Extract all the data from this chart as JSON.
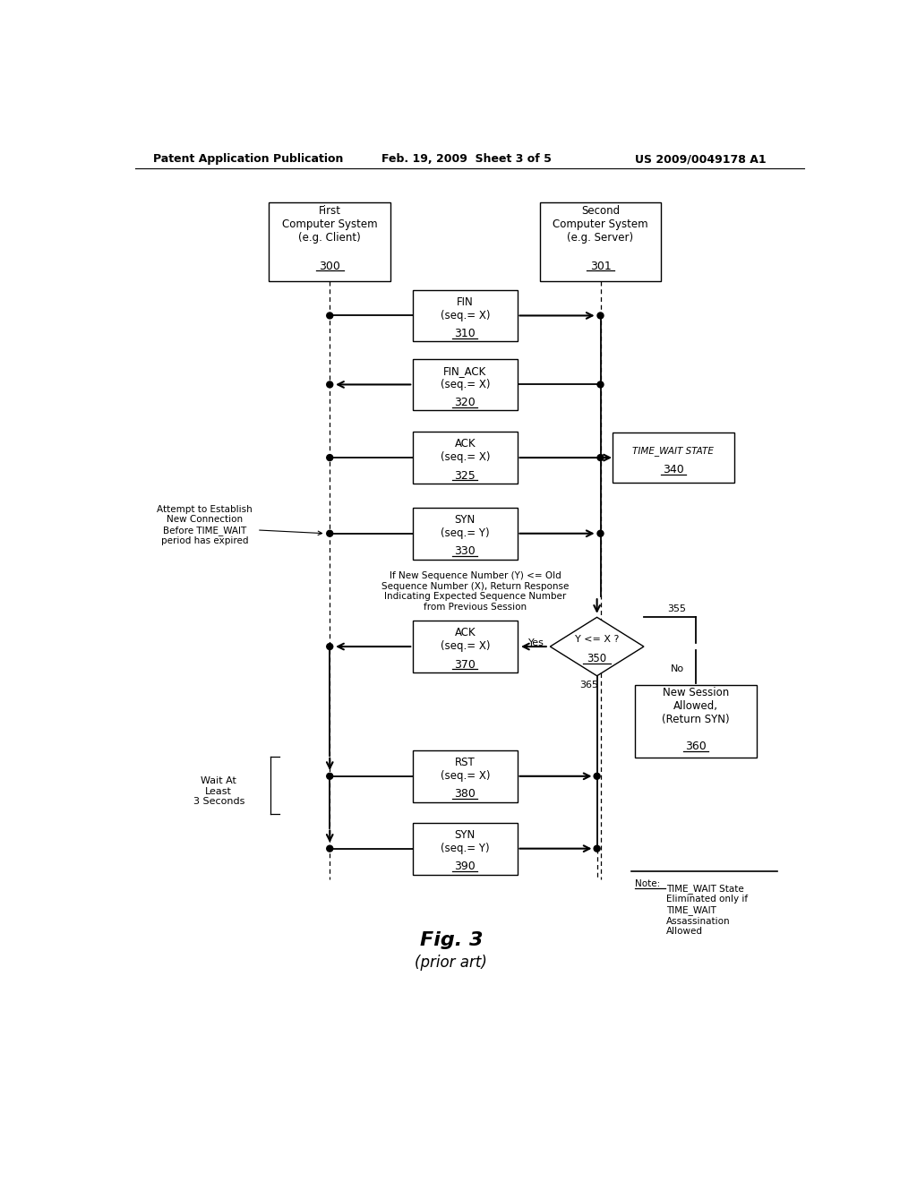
{
  "header_left": "Patent Application Publication",
  "header_mid": "Feb. 19, 2009  Sheet 3 of 5",
  "header_right": "US 2009/0049178 A1",
  "fig_label": "Fig. 3",
  "fig_sublabel": "(prior art)",
  "label_attempt": "Attempt to Establish\nNew Connection\nBefore TIME_WAIT\nperiod has expired",
  "label_sequence": "If New Sequence Number (Y) <= Old\nSequence Number (X), Return Response\nIndicating Expected Sequence Number\nfrom Previous Session",
  "label_wait": "Wait At\nLeast\n3 Seconds",
  "label_yes": "Yes",
  "label_no": "No"
}
